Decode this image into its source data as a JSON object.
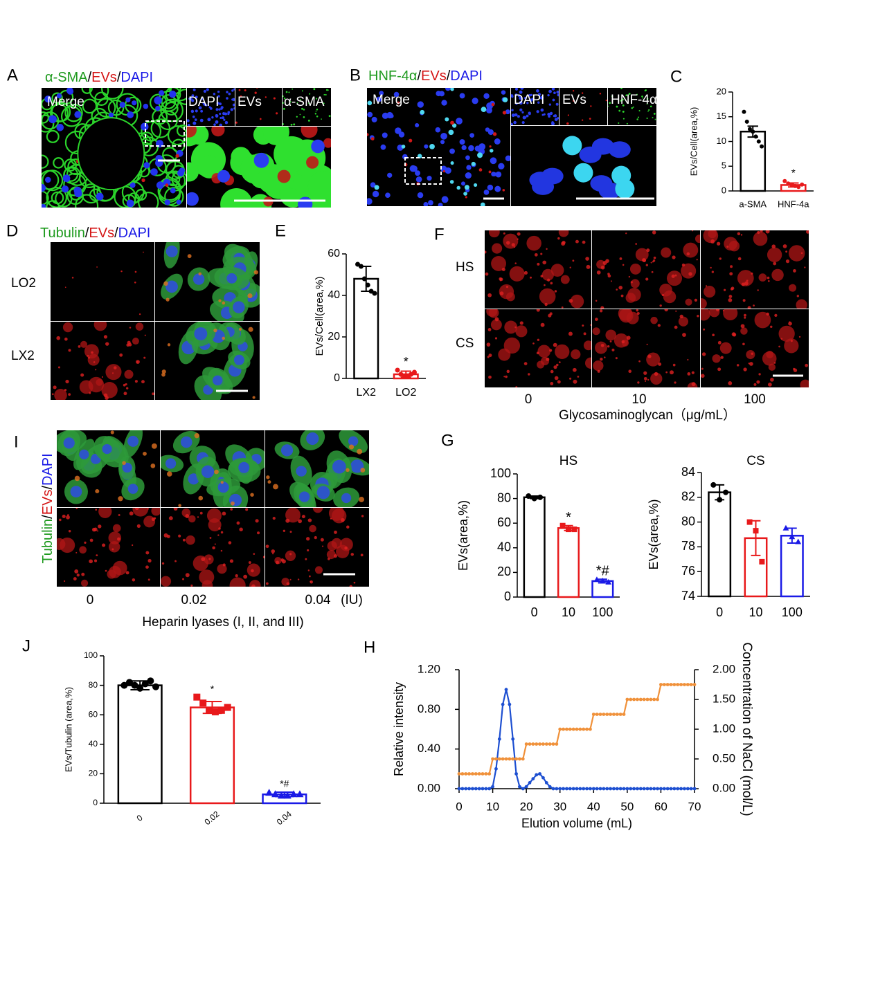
{
  "panels": {
    "letters": [
      "A",
      "B",
      "C",
      "D",
      "E",
      "F",
      "G",
      "H",
      "I",
      "J"
    ],
    "A": {
      "title": [
        {
          "text": "α-SMA",
          "color": "#1e9a1e"
        },
        {
          "text": "/",
          "color": "#000000"
        },
        {
          "text": "EVs",
          "color": "#d41414"
        },
        {
          "text": "/",
          "color": "#000000"
        },
        {
          "text": "DAPI",
          "color": "#1a1ae6"
        }
      ],
      "labels": [
        "Merge",
        "DAPI",
        "EVs",
        "α-SMA"
      ]
    },
    "B": {
      "title": [
        {
          "text": "HNF-4α",
          "color": "#1e9a1e"
        },
        {
          "text": "/",
          "color": "#000000"
        },
        {
          "text": "EVs",
          "color": "#d41414"
        },
        {
          "text": "/",
          "color": "#000000"
        },
        {
          "text": "DAPI",
          "color": "#1a1ae6"
        }
      ],
      "labels": [
        "Merge",
        "DAPI",
        "EVs",
        "HNF-4α"
      ]
    },
    "D": {
      "title": [
        {
          "text": "Tubulin",
          "color": "#1e9a1e"
        },
        {
          "text": "/",
          "color": "#000000"
        },
        {
          "text": "EVs",
          "color": "#d41414"
        },
        {
          "text": "/",
          "color": "#000000"
        },
        {
          "text": "DAPI",
          "color": "#1a1ae6"
        }
      ],
      "rows": [
        "LO2",
        "LX2"
      ]
    },
    "F": {
      "rows": [
        "HS",
        "CS"
      ],
      "columns": [
        "0",
        "10",
        "100"
      ],
      "xlabel": "Glycosaminoglycan（μg/mL）"
    },
    "I": {
      "title": [
        {
          "text": "Tubulin",
          "color": "#1e9a1e"
        },
        {
          "text": "/",
          "color": "#000000"
        },
        {
          "text": "EVs",
          "color": "#d41414"
        },
        {
          "text": "/",
          "color": "#000000"
        },
        {
          "text": "DAPI",
          "color": "#1a1ae6"
        }
      ],
      "columns": [
        "0",
        "0.02",
        "0.04"
      ],
      "unit": "(IU)",
      "xlabel": "Heparin lyases (I, II, and III)"
    }
  },
  "chart_data": [
    {
      "type": "bar",
      "categories": [
        "a-SMA",
        "HNF-4a"
      ],
      "values": [
        12,
        1.2
      ],
      "errors": [
        1.1,
        0.4
      ],
      "points": [
        [
          16,
          14,
          12.5,
          12,
          11,
          10,
          9
        ],
        [
          2,
          1.5,
          1.2,
          1,
          0.8,
          1.3
        ]
      ],
      "colors": [
        "#000000",
        "#e8191b"
      ],
      "ylabel": "EVs/Cell(area,%)",
      "ylim": [
        0,
        20
      ],
      "yticks": [
        0,
        5,
        10,
        15,
        20
      ],
      "annotations": [
        {
          "category": "HNF-4a",
          "text": "*"
        }
      ]
    },
    {
      "type": "bar",
      "categories": [
        "LX2",
        "LO2"
      ],
      "values": [
        48,
        2
      ],
      "errors": [
        6,
        1.5
      ],
      "points": [
        [
          55,
          54,
          48,
          45,
          42,
          41
        ],
        [
          4,
          2,
          1,
          1,
          2,
          3
        ]
      ],
      "colors": [
        "#000000",
        "#e8191b"
      ],
      "ylabel": "EVs/Cell(area,%)",
      "ylim": [
        0,
        60
      ],
      "yticks": [
        0,
        20,
        40,
        60
      ],
      "annotations": [
        {
          "category": "LO2",
          "text": "*"
        }
      ]
    },
    {
      "type": "bar",
      "title": "HS",
      "categories": [
        "0",
        "10",
        "100"
      ],
      "values": [
        81,
        56,
        13
      ],
      "errors": [
        1,
        2,
        1.5
      ],
      "points": [
        [
          82,
          80,
          81
        ],
        [
          58,
          55,
          55
        ],
        [
          14,
          13,
          12
        ]
      ],
      "colors": [
        "#000000",
        "#e8191b",
        "#1a1ae6"
      ],
      "markers": [
        "circle",
        "square",
        "triangle"
      ],
      "ylabel": "EVs(area,%)",
      "ylim": [
        0,
        100
      ],
      "yticks": [
        0,
        20,
        40,
        60,
        80,
        100
      ],
      "annotations": [
        {
          "category": "10",
          "text": "*"
        },
        {
          "category": "100",
          "text": "*#"
        }
      ]
    },
    {
      "type": "bar",
      "title": "CS",
      "categories": [
        "0",
        "10",
        "100"
      ],
      "values": [
        82.4,
        78.7,
        78.9
      ],
      "errors": [
        0.6,
        1.4,
        0.6
      ],
      "points": [
        [
          83,
          81.8,
          82.4
        ],
        [
          80,
          79.3,
          76.8
        ],
        [
          79.5,
          78.8,
          78.4
        ]
      ],
      "colors": [
        "#000000",
        "#e8191b",
        "#1a1ae6"
      ],
      "markers": [
        "circle",
        "square",
        "triangle"
      ],
      "ylabel": "EVs(area,%)",
      "ylim": [
        74,
        84
      ],
      "yticks": [
        74,
        76,
        78,
        80,
        82,
        84
      ]
    },
    {
      "type": "bar",
      "categories": [
        "0",
        "0.02",
        "0.04"
      ],
      "values": [
        80,
        65,
        6
      ],
      "errors": [
        3,
        4,
        1.5
      ],
      "points": [
        [
          80,
          82,
          80,
          78,
          81,
          83,
          79
        ],
        [
          72,
          68,
          63,
          62,
          63,
          65
        ],
        [
          7,
          6,
          5,
          5,
          6,
          6
        ]
      ],
      "colors": [
        "#000000",
        "#e8191b",
        "#1a1ae6"
      ],
      "markers": [
        "circle",
        "square",
        "triangle"
      ],
      "ylabel": "EVs/Tubulin (area,%)",
      "ylim": [
        0,
        100
      ],
      "yticks": [
        0,
        20,
        40,
        60,
        80,
        100
      ],
      "annotations": [
        {
          "category": "0.02",
          "text": "*"
        },
        {
          "category": "0.04",
          "text": "*#"
        }
      ]
    },
    {
      "type": "line",
      "xlabel": "Elution volume (mL)",
      "ylabel": "Relative intensity",
      "y2label": "Concentration of NaCl (mol/L)",
      "x": [
        0,
        1,
        2,
        3,
        4,
        5,
        6,
        7,
        8,
        9,
        10,
        11,
        12,
        13,
        14,
        15,
        16,
        17,
        18,
        19,
        20,
        21,
        22,
        23,
        24,
        25,
        26,
        27,
        28,
        29,
        30,
        31,
        32,
        33,
        34,
        35,
        36,
        37,
        38,
        39,
        40,
        41,
        42,
        43,
        44,
        45,
        46,
        47,
        48,
        49,
        50,
        51,
        52,
        53,
        54,
        55,
        56,
        57,
        58,
        59,
        60,
        61,
        62,
        63,
        64,
        65,
        66,
        67,
        68,
        69,
        70
      ],
      "series": [
        {
          "color": "#1d4fd1",
          "values": [
            0,
            0,
            0,
            0,
            0,
            0,
            0,
            0,
            0,
            0,
            0.02,
            0.2,
            0.5,
            0.85,
            1.0,
            0.85,
            0.5,
            0.15,
            0.02,
            0,
            0.02,
            0.06,
            0.1,
            0.14,
            0.15,
            0.11,
            0.06,
            0.02,
            0,
            0,
            0,
            0,
            0,
            0,
            0,
            0,
            0,
            0,
            0,
            0,
            0,
            0,
            0,
            0,
            0,
            0,
            0,
            0,
            0,
            0,
            0,
            0,
            0,
            0,
            0,
            0,
            0,
            0,
            0,
            0,
            0,
            0,
            0,
            0,
            0,
            0,
            0,
            0,
            0,
            0,
            0
          ]
        },
        {
          "color": "#f0913a",
          "axis": "y2",
          "values": [
            0.25,
            0.25,
            0.25,
            0.25,
            0.25,
            0.25,
            0.25,
            0.25,
            0.25,
            0.25,
            0.5,
            0.5,
            0.5,
            0.5,
            0.5,
            0.5,
            0.5,
            0.5,
            0.5,
            0.5,
            0.75,
            0.75,
            0.75,
            0.75,
            0.75,
            0.75,
            0.75,
            0.75,
            0.75,
            0.75,
            1,
            1,
            1,
            1,
            1,
            1,
            1,
            1,
            1,
            1,
            1.25,
            1.25,
            1.25,
            1.25,
            1.25,
            1.25,
            1.25,
            1.25,
            1.25,
            1.25,
            1.5,
            1.5,
            1.5,
            1.5,
            1.5,
            1.5,
            1.5,
            1.5,
            1.5,
            1.5,
            1.75,
            1.75,
            1.75,
            1.75,
            1.75,
            1.75,
            1.75,
            1.75,
            1.75,
            1.75,
            1.75
          ]
        }
      ],
      "xlim": [
        0,
        70
      ],
      "xticks": [
        0,
        10,
        20,
        30,
        40,
        50,
        60,
        70
      ],
      "ylim": [
        0,
        1.2
      ],
      "yticks": [
        {
          "value": 0,
          "label": "0.00"
        },
        {
          "value": 0.4,
          "label": "0.40"
        },
        {
          "value": 0.8,
          "label": "0.80"
        },
        {
          "value": 1.2,
          "label": "1.20"
        }
      ],
      "y2lim": [
        0,
        2
      ],
      "y2ticks": [
        {
          "value": 0,
          "label": "0.00"
        },
        {
          "value": 0.5,
          "label": "0.50"
        },
        {
          "value": 1,
          "label": "1.00"
        },
        {
          "value": 1.5,
          "label": "1.50"
        },
        {
          "value": 2,
          "label": "2.00"
        }
      ]
    }
  ]
}
